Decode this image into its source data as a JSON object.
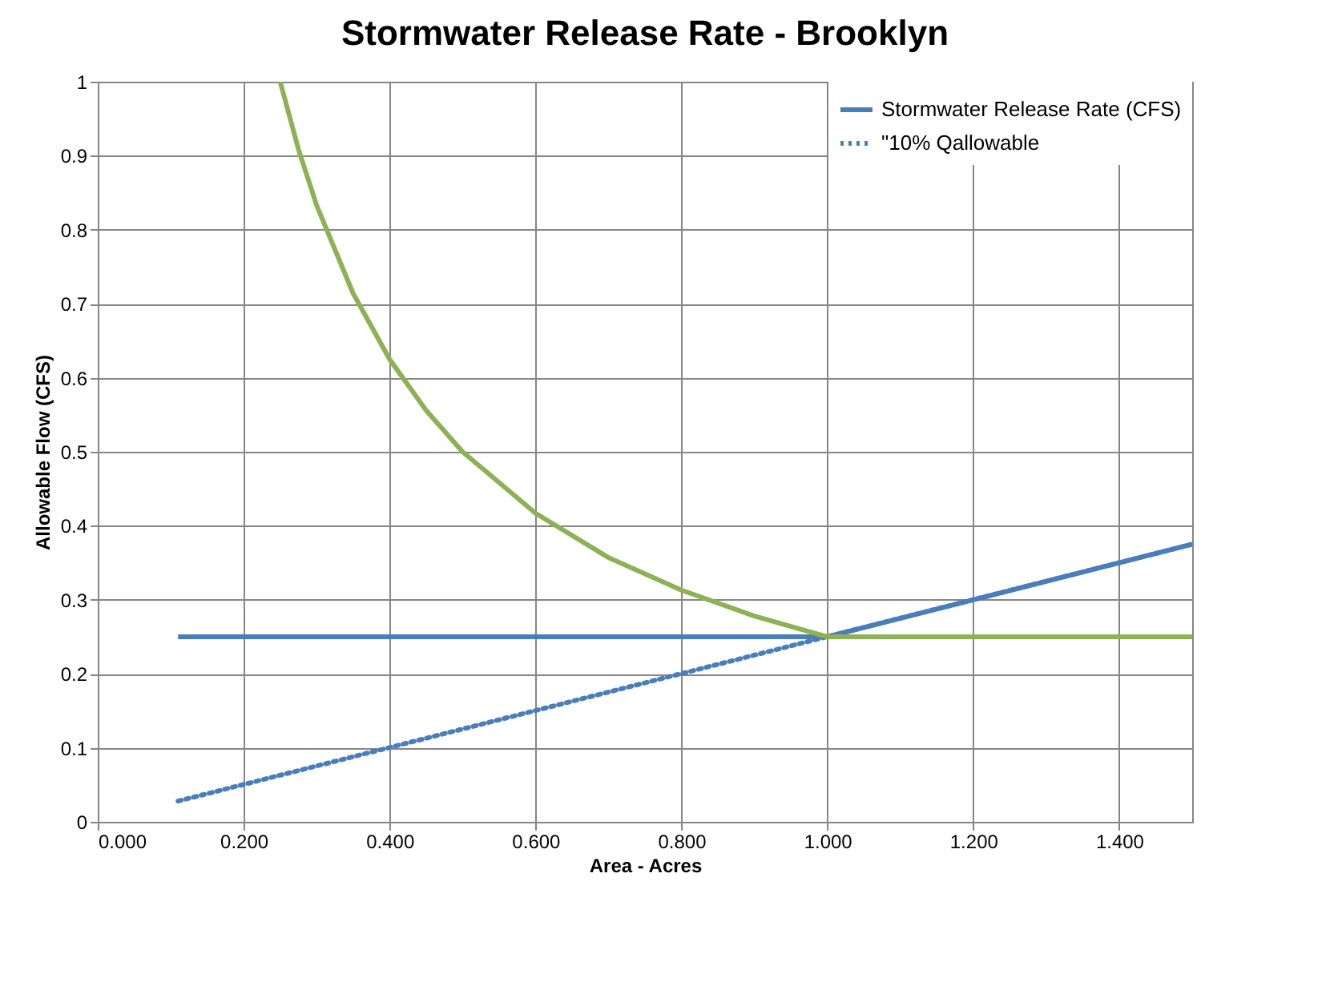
{
  "chart_data": {
    "type": "line",
    "title": "Stormwater Release Rate - Brooklyn",
    "xlabel": "Area - Acres",
    "ylabel": "Allowable Flow (CFS)",
    "xlim": [
      0,
      1.5
    ],
    "xticks": [
      {
        "value": 0,
        "label": "0.000"
      },
      {
        "value": 0.2,
        "label": "0.200"
      },
      {
        "value": 0.4,
        "label": "0.400"
      },
      {
        "value": 0.6,
        "label": "0.600"
      },
      {
        "value": 0.8,
        "label": "0.800"
      },
      {
        "value": 1.0,
        "label": "1.000"
      },
      {
        "value": 1.2,
        "label": "1.200"
      },
      {
        "value": 1.4,
        "label": "1.400"
      }
    ],
    "ylim": [
      0,
      1
    ],
    "yticks": [
      0,
      0.1,
      0.2,
      0.3,
      0.4,
      0.5,
      0.6,
      0.7,
      0.8,
      0.9,
      1
    ],
    "grid": true,
    "legend": "top right",
    "marker": "none",
    "series": [
      {
        "name": "Stormwater Release Rate (CFS)",
        "color": "#4a7ebb",
        "line_style": "solid",
        "x": [
          0.11,
          1.0,
          1.5
        ],
        "values": [
          0.25,
          0.25,
          0.375
        ]
      },
      {
        "name": "\"10% Qallowable",
        "color": "#4a7ebb",
        "line_style": "dotted",
        "x": [
          0.11,
          1.5
        ],
        "values": [
          0.028,
          0.375
        ]
      },
      {
        "color": "#8db255",
        "line_style": "solid",
        "x": [
          0.25,
          0.275,
          0.3,
          0.35,
          0.4,
          0.45,
          0.5,
          0.6,
          0.7,
          0.8,
          0.9,
          1.0,
          1.5
        ],
        "values": [
          1.0,
          0.909,
          0.833,
          0.714,
          0.625,
          0.556,
          0.5,
          0.417,
          0.357,
          0.313,
          0.278,
          0.25,
          0.25
        ]
      }
    ]
  }
}
